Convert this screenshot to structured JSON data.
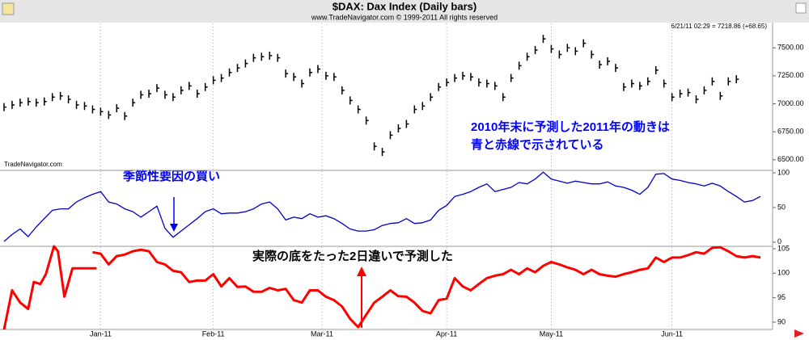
{
  "chart_data": [
    {
      "type": "tick",
      "title": "$DAX:  Dax Index  (Daily bars)",
      "subtitle": "www.TradeNavigator.com © 1999-2011 All rights reserved",
      "annotations": [
        "6/21/11 02:29 = 7218.86 (+68.65)",
        "TradeNavigator.com",
        "2010年末に予測した2011年の動きは",
        "青と赤線で示されている"
      ],
      "color": "#000000",
      "xlim": [
        0,
        95
      ],
      "ylim": [
        6405,
        7725
      ],
      "yticks": [
        {
          "value": 6500,
          "label": "6500.00"
        },
        {
          "value": 6750,
          "label": "6750.00"
        },
        {
          "value": 7000,
          "label": "7000.00"
        },
        {
          "value": 7250,
          "label": "7250.00"
        },
        {
          "value": 7500,
          "label": "7500.00"
        }
      ],
      "x": [
        0,
        1,
        2,
        3,
        4,
        5,
        6,
        7,
        8,
        9,
        10,
        11,
        12,
        13,
        14,
        15,
        16,
        17,
        18,
        19,
        20,
        21,
        22,
        23,
        24,
        25,
        26,
        27,
        28,
        29,
        30,
        31,
        32,
        33,
        34,
        35,
        36,
        37,
        38,
        39,
        40,
        41,
        42,
        43,
        44,
        45,
        46,
        47,
        48,
        49,
        50,
        51,
        52,
        53,
        54,
        55,
        56,
        57,
        58,
        59,
        60,
        61,
        62,
        63,
        64,
        65,
        66,
        67,
        68,
        69,
        70,
        71,
        72,
        73,
        74,
        75,
        76,
        77,
        78,
        79,
        80,
        81,
        82,
        83,
        84,
        85,
        86,
        87,
        88,
        89,
        90,
        91
      ],
      "values": [
        6970,
        6990,
        7010,
        7020,
        7010,
        7020,
        7060,
        7070,
        7040,
        6990,
        6980,
        6950,
        6930,
        6900,
        6960,
        6890,
        7010,
        7080,
        7090,
        7140,
        7080,
        7060,
        7120,
        7160,
        7090,
        7150,
        7210,
        7230,
        7280,
        7320,
        7360,
        7410,
        7420,
        7430,
        7410,
        7270,
        7240,
        7180,
        7280,
        7310,
        7250,
        7240,
        7120,
        7030,
        6950,
        6850,
        6620,
        6570,
        6720,
        6780,
        6820,
        6950,
        6980,
        7060,
        7150,
        7190,
        7230,
        7250,
        7240,
        7190,
        7180,
        7160,
        7060,
        7230,
        7340,
        7420,
        7480,
        7580,
        7490,
        7440,
        7500,
        7470,
        7540,
        7440,
        7350,
        7380,
        7320,
        7150,
        7180,
        7160,
        7200,
        7300,
        7180,
        7060,
        7090,
        7100,
        7040,
        7120,
        7200,
        7070,
        7200,
        7218.86
      ]
    },
    {
      "type": "line",
      "annotations": [
        "季節性要因の買い"
      ],
      "color": "#0000cc",
      "xlim": [
        0,
        95
      ],
      "ylim": [
        -6,
        103.5
      ],
      "yticks": [
        0,
        50,
        100
      ],
      "x": [
        0,
        1,
        2,
        3,
        4,
        5,
        6,
        7,
        8,
        9,
        10,
        11,
        12,
        13,
        14,
        15,
        16,
        17,
        18,
        19,
        20,
        21,
        22,
        23,
        24,
        25,
        26,
        27,
        28,
        29,
        30,
        31,
        32,
        33,
        34,
        35,
        36,
        37,
        38,
        39,
        40,
        41,
        42,
        43,
        44,
        45,
        46,
        47,
        48,
        49,
        50,
        51,
        52,
        53,
        54,
        55,
        56,
        57,
        58,
        59,
        60,
        61,
        62,
        63,
        64,
        65,
        66,
        67,
        68,
        69,
        70,
        71,
        72,
        73,
        74,
        75,
        76,
        77,
        78,
        79,
        80,
        81,
        82,
        83,
        84,
        85,
        86,
        87,
        88,
        89,
        90,
        91,
        92,
        93,
        94
      ],
      "values": [
        1,
        11,
        19,
        8,
        22,
        34,
        46,
        48,
        48,
        58,
        64,
        69,
        73,
        58,
        55,
        48,
        44,
        36,
        44,
        52,
        20,
        7,
        16,
        25,
        34,
        44,
        48,
        41,
        42,
        42,
        44,
        48,
        55,
        58,
        48,
        32,
        36,
        34,
        41,
        36,
        38,
        34,
        27,
        19,
        16,
        16,
        18,
        24,
        27,
        28,
        34,
        27,
        28,
        32,
        46,
        53,
        66,
        69,
        73,
        79,
        84,
        73,
        76,
        79,
        86,
        84,
        91,
        101,
        91,
        88,
        85,
        88,
        86,
        84,
        84,
        87,
        81,
        79,
        75,
        69,
        79,
        98,
        99,
        91,
        89,
        86,
        84,
        81,
        85,
        81,
        73,
        66,
        58,
        60,
        66
      ]
    },
    {
      "type": "line",
      "annotations": [
        "実際の底をたった2日違いで予測した"
      ],
      "color": "#ff0000",
      "xlim": [
        0,
        95
      ],
      "ylim": [
        88.5,
        105.5
      ],
      "yticks": [
        90,
        95,
        100,
        105
      ],
      "grid": true,
      "xticks": [
        {
          "value": 12,
          "label": "Jan-11"
        },
        {
          "value": 26,
          "label": "Feb-11"
        },
        {
          "value": 39.5,
          "label": "Mar-11"
        },
        {
          "value": 55,
          "label": "Apr-11"
        },
        {
          "value": 68,
          "label": "May-11"
        },
        {
          "value": 83,
          "label": "Jun-11"
        }
      ],
      "x": [
        0,
        1,
        2,
        3,
        3.7,
        4.5,
        5.2,
        6.2,
        6.7,
        7.5,
        8.5,
        9.5,
        10.5,
        11.5,
        null,
        11,
        12,
        13,
        14,
        15,
        16,
        17,
        18,
        19,
        20,
        21,
        22,
        23,
        24,
        25,
        26,
        27,
        28,
        29,
        30,
        31,
        32,
        33,
        34,
        35,
        36,
        37,
        38,
        39,
        40,
        41,
        42,
        43,
        44,
        45,
        46,
        47,
        48,
        49,
        50,
        51,
        52,
        53,
        54,
        55,
        56,
        57,
        58,
        59,
        60,
        61,
        62,
        63,
        64,
        65,
        66,
        67,
        68,
        69,
        70,
        71,
        72,
        73,
        74,
        75,
        76,
        77,
        78,
        79,
        80,
        81,
        82,
        83,
        84,
        85,
        86,
        87,
        88,
        89,
        90,
        91,
        92,
        93,
        94
      ],
      "values": [
        88.5,
        96.5,
        94.0,
        92.7,
        98.2,
        97.8,
        99.8,
        105.5,
        104.5,
        95.2,
        101.0,
        101.0,
        101.0,
        101.0,
        null,
        104.3,
        104.0,
        101.8,
        103.5,
        103.8,
        104.5,
        104.8,
        104.5,
        102.3,
        101.8,
        100.5,
        100.2,
        98.2,
        98.5,
        98.5,
        99.8,
        97.3,
        99.0,
        97.2,
        97.3,
        96.2,
        96.2,
        97.0,
        96.5,
        96.8,
        94.5,
        94.0,
        96.5,
        96.5,
        95.2,
        94.5,
        93.2,
        90.7,
        89.0,
        91.5,
        94.0,
        95.2,
        96.5,
        95.3,
        95.2,
        94.0,
        92.3,
        91.8,
        94.5,
        94.8,
        99.0,
        97.3,
        96.5,
        97.8,
        99.0,
        99.5,
        99.8,
        100.7,
        99.8,
        101.0,
        100.2,
        101.5,
        102.3,
        101.8,
        101.2,
        100.7,
        99.8,
        100.7,
        99.8,
        99.5,
        99.3,
        99.8,
        100.2,
        100.7,
        101.0,
        103.2,
        102.3,
        103.2,
        103.2,
        103.7,
        104.3,
        104.0,
        105.2,
        105.3,
        104.5,
        103.5,
        103.2,
        103.5,
        103.2
      ]
    }
  ]
}
